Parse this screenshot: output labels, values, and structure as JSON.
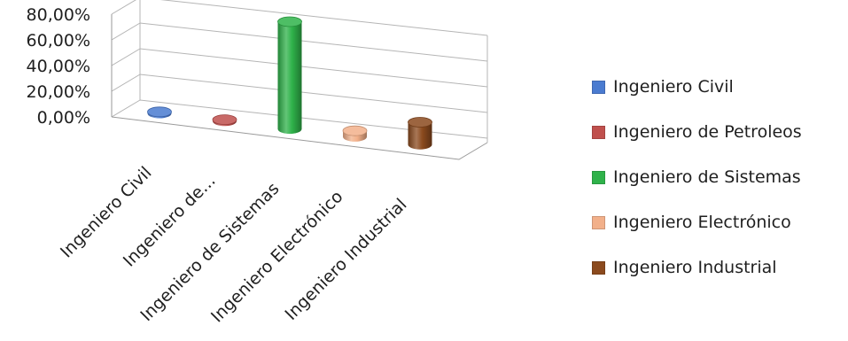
{
  "chart_data": {
    "type": "bar",
    "style": "3d-cylinder",
    "categories": [
      "Ingeniero Civil",
      "Ingeniero de...",
      "Ingeniero de Sistemas",
      "Ingeniero Electrónico",
      "Ingeniero Industrial"
    ],
    "series": [
      {
        "name": "Ingeniero Civil",
        "values": [
          1.0,
          0,
          0,
          0,
          0
        ],
        "color": "#4a7bd0"
      },
      {
        "name": "Ingeniero de Petroleos",
        "values": [
          0,
          1.0,
          0,
          0,
          0
        ],
        "color": "#c0504d"
      },
      {
        "name": "Ingeniero de Sistemas",
        "values": [
          0,
          0,
          72.0,
          0,
          0
        ],
        "color": "#2fb24a"
      },
      {
        "name": "Ingeniero Electrónico",
        "values": [
          0,
          0,
          0,
          4.0,
          0
        ],
        "color": "#f2b08a"
      },
      {
        "name": "Ingeniero Industrial",
        "values": [
          0,
          0,
          0,
          0,
          15.0
        ],
        "color": "#8b4a1e"
      }
    ],
    "y_ticks": [
      "0,00%",
      "20,00%",
      "40,00%",
      "60,00%",
      "80,00%"
    ],
    "ylim": [
      0,
      80
    ],
    "grid": true,
    "legend_position": "right"
  }
}
